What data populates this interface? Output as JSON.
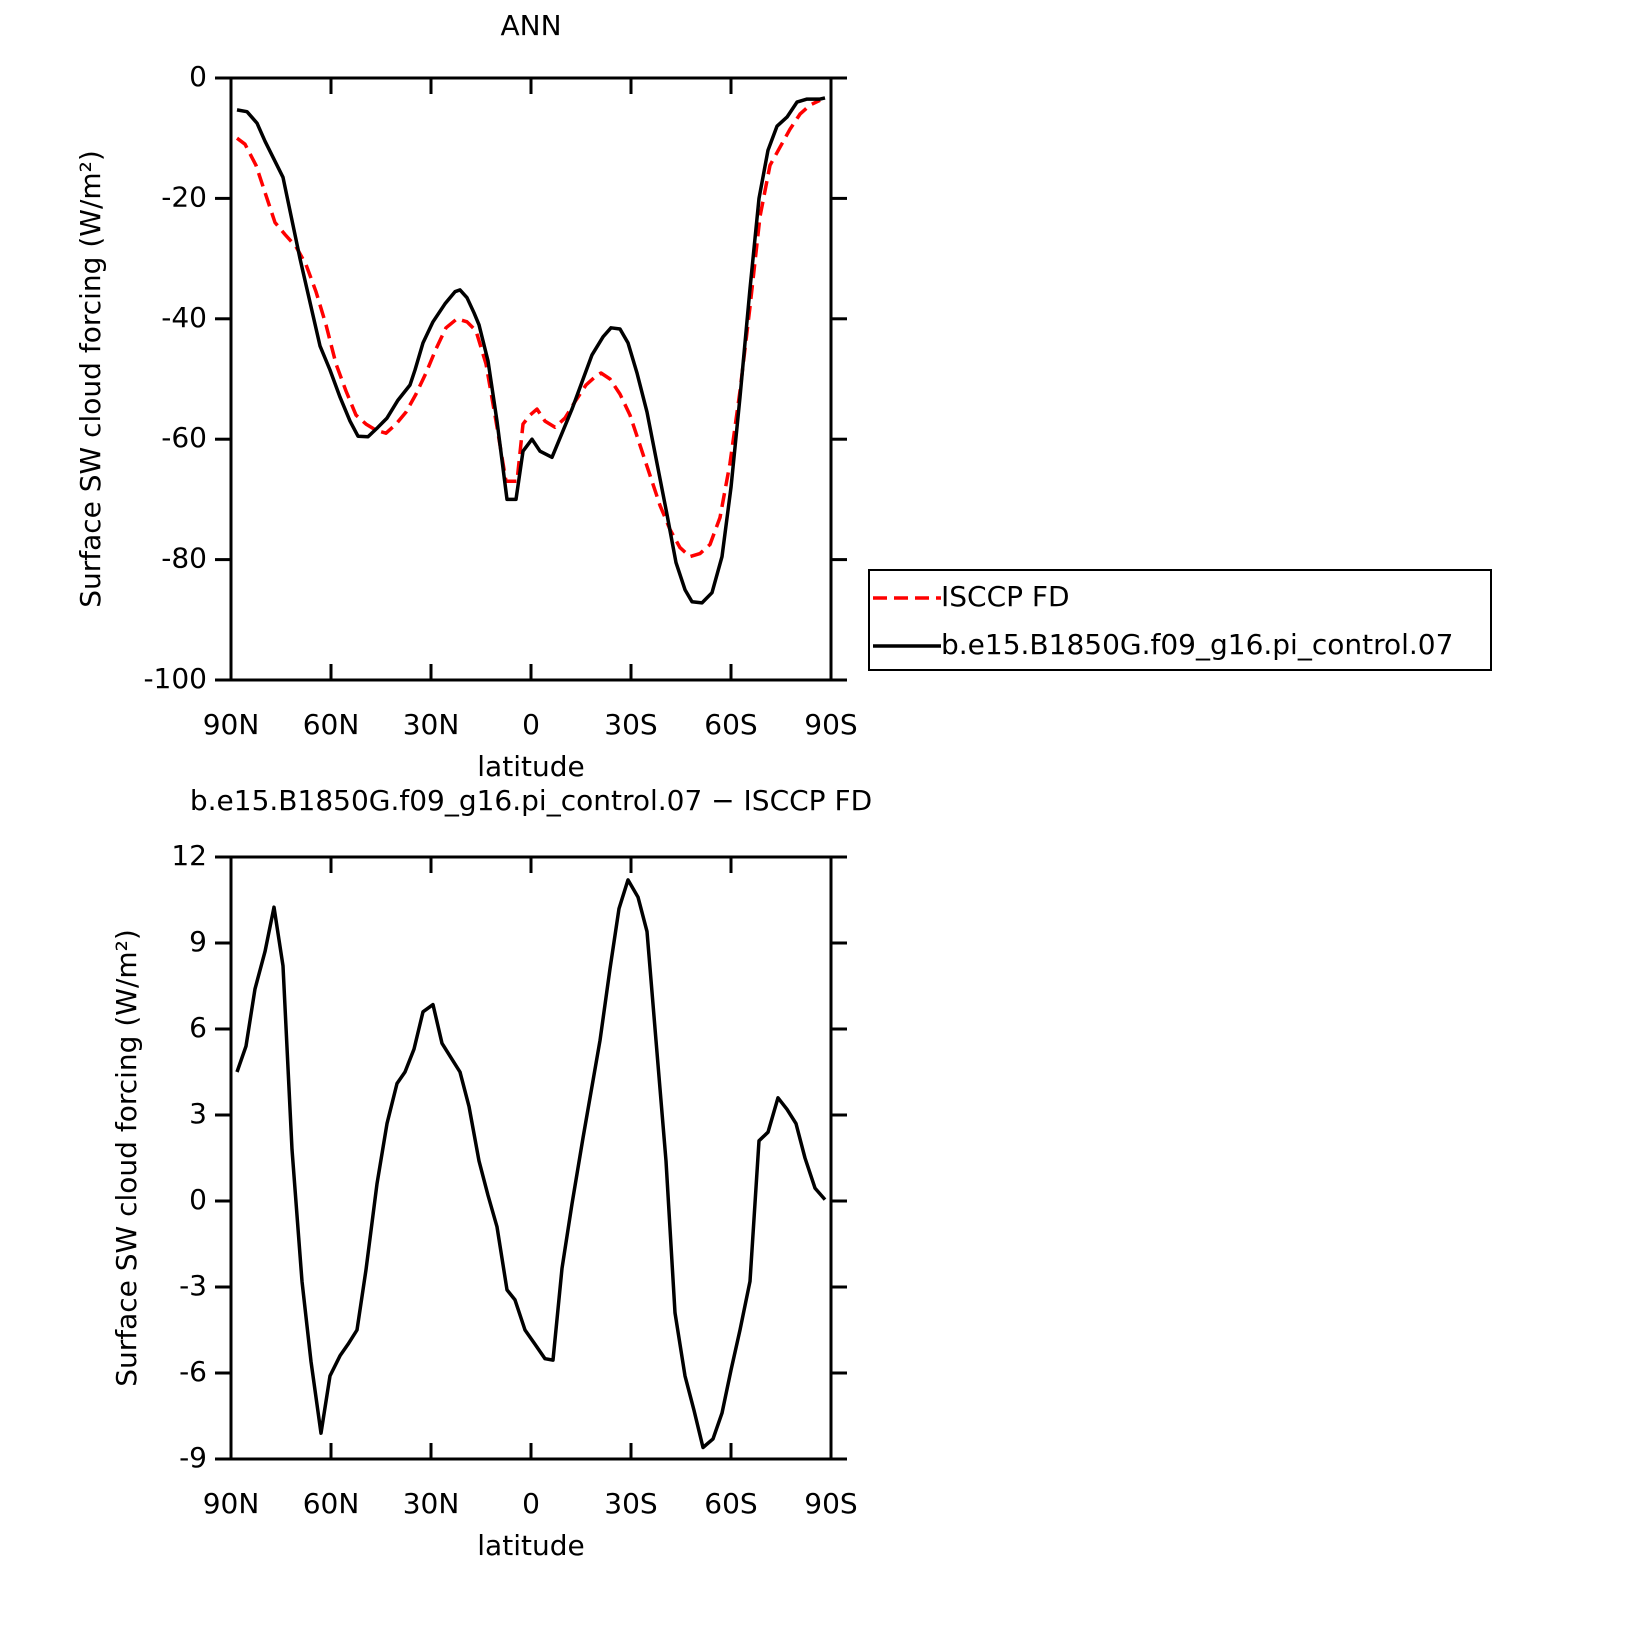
{
  "chart_data": [
    {
      "type": "line",
      "title": "ANN",
      "xlabel": "latitude",
      "ylabel": "Surface SW cloud forcing (W/m²)",
      "xlim": [
        90,
        -90
      ],
      "ylim": [
        -100,
        0
      ],
      "xticks": [
        {
          "value": 90,
          "label": "90N"
        },
        {
          "value": 60,
          "label": "60N"
        },
        {
          "value": 30,
          "label": "30N"
        },
        0,
        {
          "value": -30,
          "label": "30S"
        },
        {
          "value": -60,
          "label": "60S"
        },
        {
          "value": -90,
          "label": "90S"
        }
      ],
      "yticks": [
        0,
        -20,
        -40,
        -60,
        -80,
        -100
      ],
      "legend": "right",
      "series": [
        {
          "name": "ISCCP FD",
          "color": "#ff0000",
          "dash": true,
          "x": [
            88.2,
            85.8,
            82.5,
            79.8,
            76.8,
            73.8,
            70.5,
            67.5,
            64.5,
            61.5,
            58.5,
            55.5,
            52.5,
            49.5,
            46.5,
            43.5,
            40.5,
            37.5,
            34.5,
            31.5,
            28.5,
            25.5,
            22.2,
            19.2,
            16.5,
            13.5,
            10.5,
            7.5,
            4.2,
            2.4,
            0.3,
            -1.8,
            -4.2,
            -7.2,
            -10.2,
            -13.5,
            -16.5,
            -19.5,
            -21,
            -23.7,
            -26.7,
            -29.7,
            -32.7,
            -35.7,
            -38.7,
            -41.7,
            -44.7,
            -47.7,
            -50.7,
            -53.7,
            -56.7,
            -59.7,
            -62.7,
            -65.7,
            -68.7,
            -71.7,
            -74.7,
            -77.7,
            -80.7,
            -83.7,
            -86.7
          ],
          "values": [
            -10,
            -11,
            -14.5,
            -19,
            -24,
            -26,
            -28,
            -31,
            -35.5,
            -41,
            -47.5,
            -52,
            -56,
            -57.5,
            -58.5,
            -59,
            -57.5,
            -55.5,
            -52.5,
            -49,
            -45,
            -41.5,
            -40,
            -40.5,
            -42,
            -47.5,
            -57,
            -67,
            -67,
            -57.5,
            -56,
            -55,
            -57,
            -58,
            -56.5,
            -53.5,
            -51,
            -49.5,
            -49,
            -50,
            -52.5,
            -56,
            -61,
            -66,
            -71,
            -75,
            -78,
            -79.5,
            -79,
            -77.5,
            -73,
            -64,
            -52,
            -38,
            -23,
            -14.5,
            -11.5,
            -8.5,
            -6,
            -4.5,
            -3.7
          ]
        },
        {
          "name": "b.e15.B1850G.f09_g16.pi_control.07",
          "color": "#000000",
          "dash": false,
          "x": [
            88.2,
            85.2,
            82.2,
            79.8,
            74.4,
            69.3,
            63.3,
            60.3,
            57.3,
            54.3,
            51.9,
            48.9,
            45.9,
            43.2,
            39.9,
            36.3,
            34.8,
            32.4,
            29.4,
            25.8,
            22.8,
            21.3,
            19.2,
            17.1,
            15.6,
            12.9,
            10.2,
            7.2,
            4.5,
            2.4,
            -0.3,
            -2.7,
            -6.3,
            -9.3,
            -12.3,
            -15.3,
            -18.3,
            -21.6,
            -24,
            -26.7,
            -29.1,
            -31.8,
            -34.8,
            -37.8,
            -40.8,
            -43.5,
            -46.2,
            -48.3,
            -51.3,
            -54.3,
            -57.3,
            -60,
            -62.7,
            -65.7,
            -68.4,
            -71.1,
            -73.8,
            -76.8,
            -79.8,
            -82.8,
            -86.7,
            -88.2
          ],
          "values": [
            -5.3,
            -5.6,
            -7.5,
            -10.5,
            -16.5,
            -30,
            -44.5,
            -48.5,
            -53,
            -57,
            -59.5,
            -59.6,
            -58,
            -56.5,
            -53.5,
            -51,
            -48.5,
            -44,
            -40.5,
            -37.5,
            -35.5,
            -35.2,
            -36.5,
            -39,
            -41,
            -47,
            -57,
            -70,
            -70,
            -62,
            -60,
            -62,
            -63,
            -59,
            -55,
            -50.5,
            -46,
            -43,
            -41.5,
            -41.7,
            -44,
            -49,
            -55.5,
            -64,
            -72.5,
            -80.5,
            -85,
            -87,
            -87.2,
            -85.5,
            -79.5,
            -68,
            -53,
            -35,
            -20,
            -12,
            -8,
            -6.5,
            -4,
            -3.5,
            -3.5,
            -3.3
          ]
        }
      ]
    },
    {
      "type": "line",
      "title": "b.e15.B1850G.f09_g16.pi_control.07 − ISCCP FD",
      "xlabel": "latitude",
      "ylabel": "Surface SW cloud forcing (W/m²)",
      "xlim": [
        90,
        -90
      ],
      "ylim": [
        -9,
        12
      ],
      "xticks": [
        {
          "value": 90,
          "label": "90N"
        },
        {
          "value": 60,
          "label": "60N"
        },
        {
          "value": 30,
          "label": "30N"
        },
        0,
        {
          "value": -30,
          "label": "30S"
        },
        {
          "value": -60,
          "label": "60S"
        },
        {
          "value": -90,
          "label": "90S"
        }
      ],
      "yticks": [
        12,
        9,
        6,
        3,
        0,
        -3,
        -6,
        -9
      ],
      "color": "#000000",
      "x": [
        88.2,
        85.5,
        82.8,
        79.8,
        77.1,
        74.4,
        71.7,
        68.7,
        66,
        63,
        60.3,
        57.3,
        54.9,
        52.2,
        49.5,
        46.2,
        43.2,
        40.2,
        37.8,
        35.1,
        32.4,
        29.4,
        26.7,
        24,
        21.3,
        18.6,
        15.6,
        12.9,
        10.2,
        7.2,
        4.8,
        1.8,
        -1.2,
        -4.2,
        -6.6,
        -9.3,
        -12.3,
        -15.6,
        -18,
        -20.7,
        -23.7,
        -26.4,
        -29.1,
        -32.1,
        -34.8,
        -37.5,
        -40.5,
        -43.2,
        -46.2,
        -48.9,
        -51.6,
        -54.6,
        -57.3,
        -60,
        -62.7,
        -65.7,
        -68.4,
        -71.1,
        -74.1,
        -76.8,
        -79.5,
        -82.2,
        -85.2,
        -88.2
      ],
      "values": [
        4.5,
        5.4,
        7.4,
        8.7,
        10.25,
        8.2,
        1.8,
        -2.8,
        -5.6,
        -8.1,
        -6.1,
        -5.4,
        -5,
        -4.5,
        -2.4,
        0.6,
        2.7,
        4.1,
        4.5,
        5.3,
        6.6,
        6.85,
        5.5,
        5,
        4.5,
        3.3,
        1.4,
        0.2,
        -0.9,
        -3.1,
        -3.45,
        -4.5,
        -5,
        -5.5,
        -5.55,
        -2.35,
        -0.1,
        2.2,
        3.8,
        5.6,
        8.1,
        10.2,
        11.2,
        10.6,
        9.4,
        5.6,
        1.4,
        -3.9,
        -6.1,
        -7.3,
        -8.6,
        -8.3,
        -7.4,
        -5.9,
        -4.5,
        -2.8,
        2.1,
        2.4,
        3.6,
        3.2,
        2.7,
        1.5,
        0.45,
        0.05
      ]
    }
  ]
}
